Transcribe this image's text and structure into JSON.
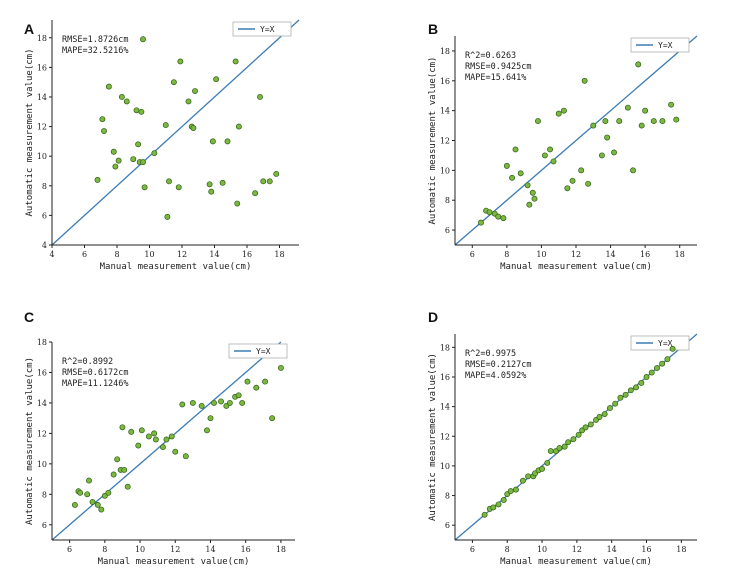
{
  "chart_data": [
    {
      "type": "scatter",
      "panel": "A",
      "xlabel": "Manual measurement value(cm)",
      "ylabel": "Automatic measurement value(cm)",
      "xlim": [
        4,
        19.2
      ],
      "ylim": [
        4,
        19.2
      ],
      "xticks": [
        4,
        6,
        8,
        10,
        12,
        14,
        16,
        18
      ],
      "yticks": [
        4,
        6,
        8,
        10,
        12,
        14,
        16,
        18
      ],
      "stats": [
        "RMSE=1.8726cm",
        "MAPE=32.5216%"
      ],
      "legend": "Y=X",
      "series": [
        {
          "name": "Y=X",
          "kind": "line"
        },
        {
          "name": "points",
          "kind": "scatter",
          "x": [
            6.8,
            7.1,
            7.2,
            7.5,
            7.8,
            7.9,
            8.1,
            8.3,
            8.6,
            9.0,
            9.2,
            9.3,
            9.4,
            9.5,
            9.6,
            9.6,
            9.7,
            10.3,
            11.0,
            11.1,
            11.2,
            11.5,
            11.8,
            11.9,
            12.4,
            12.6,
            12.7,
            12.8,
            13.7,
            13.8,
            13.9,
            14.1,
            14.5,
            14.8,
            15.3,
            15.4,
            15.5,
            16.5,
            16.8,
            17.0,
            17.4,
            17.8
          ],
          "y": [
            8.4,
            12.5,
            11.7,
            14.7,
            10.3,
            9.3,
            9.7,
            14.0,
            13.7,
            9.8,
            13.1,
            10.8,
            9.6,
            13.0,
            9.6,
            17.9,
            7.9,
            10.2,
            12.1,
            5.9,
            8.3,
            15.0,
            7.9,
            16.4,
            13.7,
            12.0,
            11.9,
            14.4,
            8.1,
            7.6,
            11.0,
            15.2,
            8.2,
            11.0,
            16.4,
            6.8,
            12.0,
            7.5,
            14.0,
            8.3,
            8.3,
            8.8
          ]
        }
      ]
    },
    {
      "type": "scatter",
      "panel": "B",
      "xlabel": "Manual measurement value(cm)",
      "ylabel": "Automatic measurement value(cm)",
      "xlim": [
        5,
        19
      ],
      "ylim": [
        5,
        19
      ],
      "xticks": [
        6,
        8,
        10,
        12,
        14,
        16,
        18
      ],
      "yticks": [
        6,
        8,
        10,
        12,
        14,
        16,
        18
      ],
      "stats": [
        "R^2=0.6263",
        "RMSE=0.9425cm",
        "MAPE=15.641%"
      ],
      "legend": "Y=X",
      "series": [
        {
          "name": "Y=X",
          "kind": "line"
        },
        {
          "name": "points",
          "kind": "scatter",
          "x": [
            6.5,
            6.8,
            7.0,
            7.3,
            7.5,
            7.8,
            8.0,
            8.3,
            8.5,
            8.8,
            9.2,
            9.3,
            9.5,
            9.6,
            9.8,
            10.2,
            10.5,
            10.7,
            11.0,
            11.3,
            11.5,
            11.8,
            12.3,
            12.5,
            12.7,
            13.0,
            13.5,
            13.7,
            13.8,
            14.2,
            14.5,
            15.0,
            15.3,
            15.6,
            15.8,
            16.0,
            16.5,
            17.0,
            17.5,
            17.8
          ],
          "y": [
            6.5,
            7.3,
            7.2,
            7.1,
            6.9,
            6.8,
            10.3,
            9.5,
            11.4,
            9.8,
            9.0,
            7.7,
            8.5,
            8.1,
            13.3,
            11.0,
            11.4,
            10.6,
            13.8,
            14.0,
            8.8,
            9.3,
            10.0,
            16.0,
            9.1,
            13.0,
            11.0,
            13.3,
            12.2,
            11.2,
            13.3,
            14.2,
            10.0,
            17.1,
            13.0,
            14.0,
            13.3,
            13.3,
            14.4,
            13.4
          ]
        }
      ]
    },
    {
      "type": "scatter",
      "panel": "C",
      "xlabel": "Manual measurement value(cm)",
      "ylabel": "Automatic measurement value(cm)",
      "xlim": [
        5,
        18.8
      ],
      "ylim": [
        5,
        18
      ],
      "xticks": [
        6,
        8,
        10,
        12,
        14,
        16,
        18
      ],
      "yticks": [
        6,
        8,
        10,
        12,
        14,
        16,
        18
      ],
      "stats": [
        "R^2=0.8992",
        "RMSE=0.6172cm",
        "MAPE=11.1246%"
      ],
      "legend": "Y=X",
      "series": [
        {
          "name": "Y=X",
          "kind": "line"
        },
        {
          "name": "points",
          "kind": "scatter",
          "x": [
            6.3,
            6.5,
            6.6,
            7.0,
            7.1,
            7.3,
            7.6,
            7.8,
            8.0,
            8.2,
            8.5,
            8.7,
            8.9,
            9.0,
            9.1,
            9.3,
            9.5,
            9.9,
            10.1,
            10.5,
            10.8,
            10.9,
            11.3,
            11.5,
            11.8,
            12.0,
            12.4,
            12.6,
            13.0,
            13.5,
            13.8,
            14.0,
            14.2,
            14.6,
            14.9,
            15.1,
            15.4,
            15.6,
            15.8,
            16.1,
            16.6,
            17.1,
            17.5,
            18.0
          ],
          "y": [
            7.3,
            8.2,
            8.1,
            8.0,
            8.9,
            7.5,
            7.3,
            7.0,
            7.9,
            8.1,
            9.3,
            10.3,
            9.6,
            12.4,
            9.6,
            8.5,
            12.1,
            11.2,
            12.2,
            11.8,
            12.0,
            11.6,
            11.1,
            11.6,
            11.8,
            10.8,
            13.9,
            10.5,
            14.0,
            13.8,
            12.2,
            13.0,
            14.0,
            14.1,
            13.8,
            14.0,
            14.4,
            14.5,
            14.0,
            15.4,
            15.0,
            15.4,
            13.0,
            16.3
          ]
        }
      ]
    },
    {
      "type": "scatter",
      "panel": "D",
      "xlabel": "Manual measurement value(cm)",
      "ylabel": "Automatic measurement value(cm)",
      "xlim": [
        5,
        18.9
      ],
      "ylim": [
        5,
        18.9
      ],
      "xticks": [
        6,
        8,
        10,
        12,
        14,
        16,
        18
      ],
      "yticks": [
        6,
        8,
        10,
        12,
        14,
        16,
        18
      ],
      "stats": [
        "R^2=0.9975",
        "RMSE=0.2127cm",
        "MAPE=4.0592%"
      ],
      "legend": "Y=X",
      "series": [
        {
          "name": "Y=X",
          "kind": "line"
        },
        {
          "name": "points",
          "kind": "scatter",
          "x": [
            6.7,
            7.0,
            7.2,
            7.5,
            7.8,
            8.0,
            8.2,
            8.5,
            8.9,
            9.2,
            9.5,
            9.6,
            9.8,
            10.0,
            10.3,
            10.5,
            10.8,
            11.0,
            11.3,
            11.5,
            11.8,
            12.1,
            12.3,
            12.5,
            12.8,
            13.1,
            13.3,
            13.6,
            13.9,
            14.2,
            14.5,
            14.8,
            15.1,
            15.4,
            15.7,
            16.0,
            16.3,
            16.6,
            16.9,
            17.2,
            17.5
          ],
          "y": [
            6.7,
            7.1,
            7.2,
            7.4,
            7.7,
            8.1,
            8.3,
            8.4,
            9.0,
            9.3,
            9.3,
            9.5,
            9.7,
            9.8,
            10.2,
            11.0,
            11.0,
            11.2,
            11.3,
            11.6,
            11.8,
            12.1,
            12.4,
            12.6,
            12.8,
            13.1,
            13.3,
            13.5,
            13.9,
            14.2,
            14.6,
            14.8,
            15.1,
            15.3,
            15.6,
            16.0,
            16.3,
            16.6,
            16.9,
            17.2,
            17.9
          ]
        }
      ]
    }
  ],
  "colors": {
    "line": "#3b7bb5",
    "point_fill": "#7bb840",
    "point_stroke": "#2f5f16",
    "axis": "#222222"
  }
}
